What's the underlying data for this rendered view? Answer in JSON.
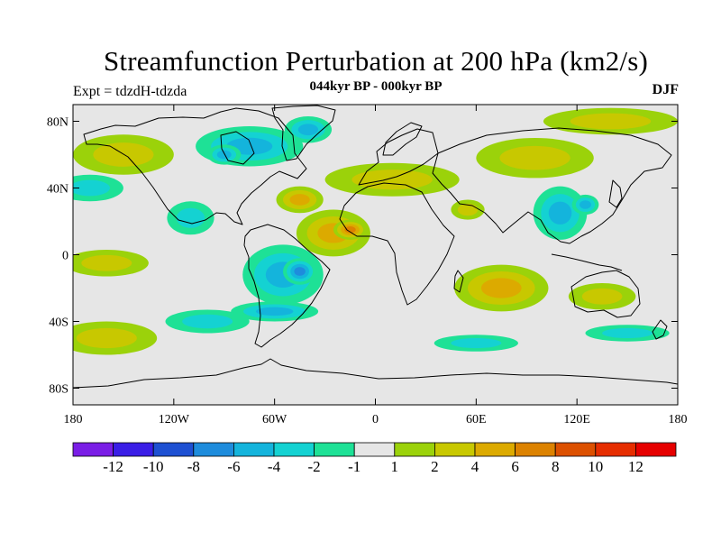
{
  "chart_data": {
    "type": "contour-map",
    "title": "Streamfunction Perturbation at 200 hPa (km2/s)",
    "subtitle": "044kyr BP - 000kyr BP",
    "left_label": "Expt = tdzdH-tdzda",
    "right_label": "DJF",
    "projection": "cylindrical-equidistant",
    "lon_range": [
      -180,
      180
    ],
    "lat_range": [
      -90,
      90
    ],
    "x_ticks": [
      {
        "lon": -180,
        "label": "180"
      },
      {
        "lon": -120,
        "label": "120W"
      },
      {
        "lon": -60,
        "label": "60W"
      },
      {
        "lon": 0,
        "label": "0"
      },
      {
        "lon": 60,
        "label": "60E"
      },
      {
        "lon": 120,
        "label": "120E"
      },
      {
        "lon": 180,
        "label": "180"
      }
    ],
    "y_ticks": [
      {
        "lat": 80,
        "label": "80N"
      },
      {
        "lat": 40,
        "label": "40N"
      },
      {
        "lat": 0,
        "label": "0"
      },
      {
        "lat": -40,
        "label": "40S"
      },
      {
        "lat": -80,
        "label": "80S"
      }
    ],
    "levels": [
      -12,
      -10,
      -8,
      -6,
      -4,
      -2,
      -1,
      1,
      2,
      4,
      6,
      8,
      10,
      12
    ],
    "level_labels": [
      "-12",
      "-10",
      "-8",
      "-6",
      "-4",
      "-2",
      "-1",
      "1",
      "2",
      "4",
      "6",
      "8",
      "10",
      "12"
    ],
    "colors": [
      "#7a1ee6",
      "#3a1ee6",
      "#1e50d2",
      "#1e8cdc",
      "#14b4dc",
      "#14d2d2",
      "#1ee196",
      "#e6e6e6",
      "#9bd20a",
      "#c8c800",
      "#dcaa00",
      "#dc8200",
      "#dc5000",
      "#e62d00",
      "#e60000"
    ],
    "anomalies": [
      {
        "name": "n-america-low",
        "lon": -75,
        "lat": 65,
        "rlon": 32,
        "rlat": 12,
        "value": -5
      },
      {
        "name": "greenland-low",
        "lon": -40,
        "lat": 75,
        "rlon": 14,
        "rlat": 8,
        "value": -4
      },
      {
        "name": "hudson-low",
        "lon": -90,
        "lat": 60,
        "rlon": 10,
        "rlat": 6,
        "value": -5
      },
      {
        "name": "atlantic-high",
        "lon": -25,
        "lat": 13,
        "rlon": 22,
        "rlat": 14,
        "value": 5
      },
      {
        "name": "sahara-high",
        "lon": -15,
        "lat": 15,
        "rlon": 10,
        "rlat": 6,
        "value": 7
      },
      {
        "name": "w-atlantic-high",
        "lon": -45,
        "lat": 33,
        "rlon": 14,
        "rlat": 8,
        "value": 5
      },
      {
        "name": "s-america-low",
        "lon": -55,
        "lat": -12,
        "rlon": 24,
        "rlat": 18,
        "value": -5
      },
      {
        "name": "brazil-low",
        "lon": -45,
        "lat": -10,
        "rlon": 10,
        "rlat": 8,
        "value": -6
      },
      {
        "name": "east-pac-low",
        "lon": -110,
        "lat": 22,
        "rlon": 14,
        "rlat": 10,
        "value": -3
      },
      {
        "name": "s-atlantic-low",
        "lon": -60,
        "lat": -34,
        "rlon": 26,
        "rlat": 6,
        "value": -4
      },
      {
        "name": "s-indian-high",
        "lon": 75,
        "lat": -20,
        "rlon": 28,
        "rlat": 14,
        "value": 5
      },
      {
        "name": "arabia-high",
        "lon": 55,
        "lat": 27,
        "rlon": 10,
        "rlat": 6,
        "value": 3
      },
      {
        "name": "asia-low",
        "lon": 110,
        "lat": 25,
        "rlon": 16,
        "rlat": 16,
        "value": -5
      },
      {
        "name": "japan-low",
        "lon": 125,
        "lat": 30,
        "rlon": 8,
        "rlat": 6,
        "value": -5
      },
      {
        "name": "siberia-high",
        "lon": 95,
        "lat": 58,
        "rlon": 35,
        "rlat": 12,
        "value": 2
      },
      {
        "name": "arctic-high",
        "lon": 140,
        "lat": 80,
        "rlon": 40,
        "rlat": 8,
        "value": 2
      },
      {
        "name": "n-pac-high",
        "lon": -150,
        "lat": 60,
        "rlon": 30,
        "rlat": 12,
        "value": 3
      },
      {
        "name": "pac-low-sub",
        "lon": -170,
        "lat": 40,
        "rlon": 20,
        "rlat": 8,
        "value": -2
      },
      {
        "name": "pac-high-south",
        "lon": -160,
        "lat": -50,
        "rlon": 30,
        "rlat": 10,
        "value": 3
      },
      {
        "name": "pac-high-trop",
        "lon": -160,
        "lat": -5,
        "rlon": 25,
        "rlat": 8,
        "value": 2
      },
      {
        "name": "se-pac-low",
        "lon": -100,
        "lat": -40,
        "rlon": 25,
        "rlat": 7,
        "value": -2
      },
      {
        "name": "s-ocean-low",
        "lon": 60,
        "lat": -53,
        "rlon": 25,
        "rlat": 5,
        "value": -2
      },
      {
        "name": "s-pac-low",
        "lon": 150,
        "lat": -47,
        "rlon": 25,
        "rlat": 5,
        "value": -2
      },
      {
        "name": "australia-high",
        "lon": 135,
        "lat": -25,
        "rlon": 20,
        "rlat": 8,
        "value": 2
      },
      {
        "name": "n-africa-high",
        "lon": 10,
        "lat": 45,
        "rlon": 40,
        "rlat": 10,
        "value": 2
      }
    ]
  }
}
